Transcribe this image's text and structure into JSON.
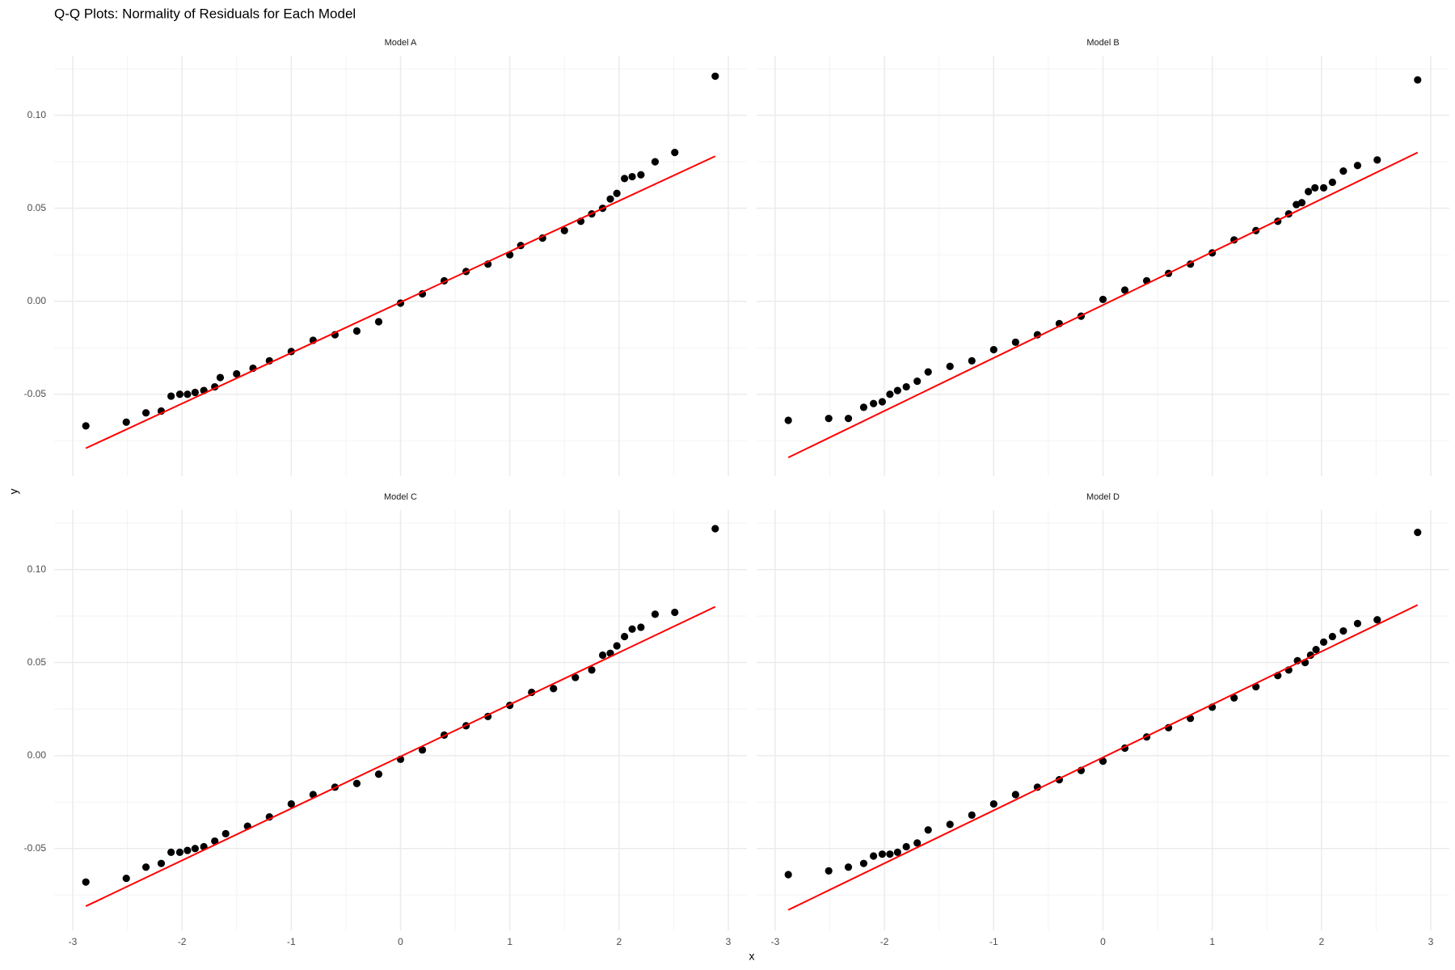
{
  "chart_data": {
    "type": "scatter",
    "title": "Q-Q Plots: Normality of Residuals for Each Model",
    "xlabel": "x",
    "ylabel": "y",
    "xlim": [
      -3.17,
      3.17
    ],
    "ylim": [
      -0.094,
      0.132
    ],
    "xticks": [
      -3,
      -2,
      -1,
      0,
      1,
      2,
      3
    ],
    "yticks": [
      {
        "value": -0.05,
        "label": "-0.05"
      },
      {
        "value": 0,
        "label": "0.00"
      },
      {
        "value": 0.05,
        "label": "0.05"
      },
      {
        "value": 0.1,
        "label": "0.10"
      }
    ],
    "x_minor_ticks": [
      -2.5,
      -1.5,
      -0.5,
      0.5,
      1.5,
      2.5
    ],
    "y_minor_ticks": [
      -0.075,
      -0.025,
      0.025,
      0.075,
      0.125
    ],
    "grid": true,
    "point_color": "#000000",
    "panels": [
      {
        "title": "Model A",
        "x": [
          -2.88,
          -2.51,
          -2.33,
          -2.19,
          -2.1,
          -2.02,
          -1.95,
          -1.88,
          -1.8,
          -1.7,
          -1.65,
          -1.5,
          -1.35,
          -1.2,
          -1.0,
          -0.8,
          -0.6,
          -0.4,
          -0.2,
          0,
          0.2,
          0.4,
          0.6,
          0.8,
          1.0,
          1.1,
          1.3,
          1.5,
          1.65,
          1.75,
          1.85,
          1.92,
          1.98,
          2.05,
          2.12,
          2.2,
          2.33,
          2.51,
          2.88
        ],
        "values": [
          -0.067,
          -0.065,
          -0.06,
          -0.059,
          -0.051,
          -0.05,
          -0.05,
          -0.049,
          -0.048,
          -0.046,
          -0.041,
          -0.039,
          -0.036,
          -0.032,
          -0.027,
          -0.021,
          -0.018,
          -0.016,
          -0.011,
          -0.001,
          0.004,
          0.011,
          0.016,
          0.02,
          0.025,
          0.03,
          0.034,
          0.038,
          0.043,
          0.047,
          0.05,
          0.055,
          0.058,
          0.066,
          0.067,
          0.068,
          0.075,
          0.08,
          0.121
        ],
        "line": {
          "color": "#ff0000",
          "x": [
            -2.88,
            2.88
          ],
          "values": [
            -0.079,
            0.078
          ]
        }
      },
      {
        "title": "Model B",
        "x": [
          -2.88,
          -2.51,
          -2.33,
          -2.19,
          -2.1,
          -2.02,
          -1.95,
          -1.88,
          -1.8,
          -1.7,
          -1.6,
          -1.4,
          -1.2,
          -1.0,
          -0.8,
          -0.6,
          -0.4,
          -0.2,
          0,
          0.2,
          0.4,
          0.6,
          0.8,
          1.0,
          1.2,
          1.4,
          1.6,
          1.7,
          1.77,
          1.82,
          1.88,
          1.94,
          2.02,
          2.1,
          2.2,
          2.33,
          2.51,
          2.88
        ],
        "values": [
          -0.064,
          -0.063,
          -0.063,
          -0.057,
          -0.055,
          -0.054,
          -0.05,
          -0.048,
          -0.046,
          -0.043,
          -0.038,
          -0.035,
          -0.032,
          -0.026,
          -0.022,
          -0.018,
          -0.012,
          -0.008,
          0.001,
          0.006,
          0.011,
          0.015,
          0.02,
          0.026,
          0.033,
          0.038,
          0.043,
          0.047,
          0.052,
          0.053,
          0.059,
          0.061,
          0.061,
          0.064,
          0.07,
          0.073,
          0.076,
          0.119
        ],
        "line": {
          "color": "#ff0000",
          "x": [
            -2.88,
            2.88
          ],
          "values": [
            -0.084,
            0.08
          ]
        }
      },
      {
        "title": "Model C",
        "x": [
          -2.88,
          -2.51,
          -2.33,
          -2.19,
          -2.1,
          -2.02,
          -1.95,
          -1.88,
          -1.8,
          -1.7,
          -1.6,
          -1.4,
          -1.2,
          -1.0,
          -0.8,
          -0.6,
          -0.4,
          -0.2,
          0,
          0.2,
          0.4,
          0.6,
          0.8,
          1.0,
          1.2,
          1.4,
          1.6,
          1.75,
          1.85,
          1.92,
          1.98,
          2.05,
          2.12,
          2.2,
          2.33,
          2.51,
          2.88
        ],
        "values": [
          -0.068,
          -0.066,
          -0.06,
          -0.058,
          -0.052,
          -0.052,
          -0.051,
          -0.05,
          -0.049,
          -0.046,
          -0.042,
          -0.038,
          -0.033,
          -0.026,
          -0.021,
          -0.017,
          -0.015,
          -0.01,
          -0.002,
          0.003,
          0.011,
          0.016,
          0.021,
          0.027,
          0.034,
          0.036,
          0.042,
          0.046,
          0.054,
          0.055,
          0.059,
          0.064,
          0.068,
          0.069,
          0.076,
          0.077,
          0.122
        ],
        "line": {
          "color": "#ff0000",
          "x": [
            -2.88,
            2.88
          ],
          "values": [
            -0.081,
            0.08
          ]
        }
      },
      {
        "title": "Model D",
        "x": [
          -2.88,
          -2.51,
          -2.33,
          -2.19,
          -2.1,
          -2.02,
          -1.95,
          -1.88,
          -1.8,
          -1.7,
          -1.6,
          -1.4,
          -1.2,
          -1.0,
          -0.8,
          -0.6,
          -0.4,
          -0.2,
          0,
          0.2,
          0.4,
          0.6,
          0.8,
          1.0,
          1.2,
          1.4,
          1.6,
          1.7,
          1.78,
          1.85,
          1.9,
          1.95,
          2.02,
          2.1,
          2.2,
          2.33,
          2.51,
          2.88
        ],
        "values": [
          -0.064,
          -0.062,
          -0.06,
          -0.058,
          -0.054,
          -0.053,
          -0.053,
          -0.052,
          -0.049,
          -0.047,
          -0.04,
          -0.037,
          -0.032,
          -0.026,
          -0.021,
          -0.017,
          -0.013,
          -0.008,
          -0.003,
          0.004,
          0.01,
          0.015,
          0.02,
          0.026,
          0.031,
          0.037,
          0.043,
          0.046,
          0.051,
          0.05,
          0.054,
          0.057,
          0.061,
          0.064,
          0.067,
          0.071,
          0.073,
          0.12
        ],
        "line": {
          "color": "#ff0000",
          "x": [
            -2.88,
            2.88
          ],
          "values": [
            -0.083,
            0.081
          ]
        }
      }
    ]
  }
}
